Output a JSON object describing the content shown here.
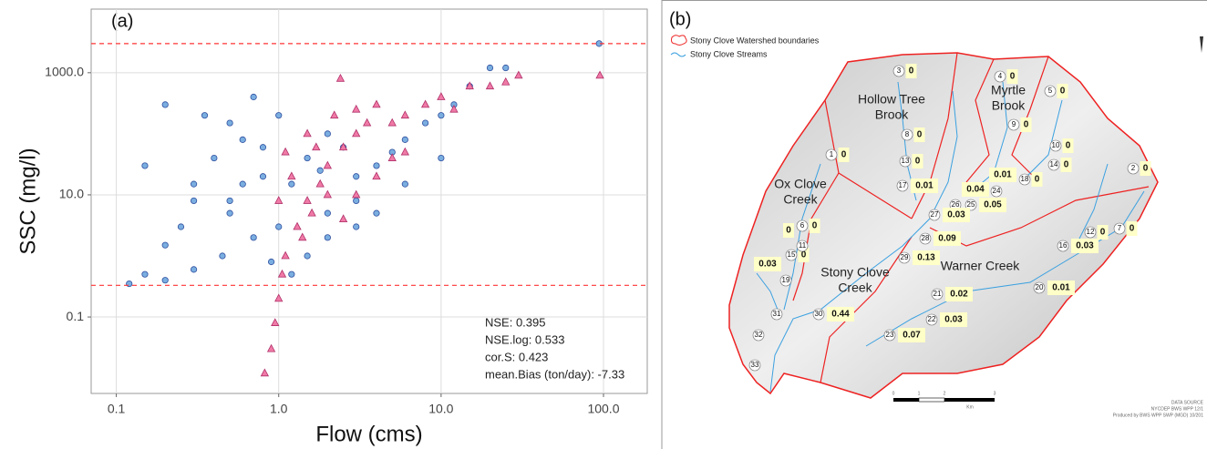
{
  "chart_data": {
    "type": "scatter",
    "panel_label": "(a)",
    "xlabel": "Flow (cms)",
    "ylabel": "SSC (mg/l)",
    "xscale": "log",
    "yscale": "log",
    "xlim": [
      0.07,
      186
    ],
    "ylim": [
      0.0056,
      11000
    ],
    "xticks": [
      0.1,
      {
        "value": 1,
        "label": "1.0"
      },
      {
        "value": 10,
        "label": "10.0"
      },
      {
        "value": 100,
        "label": "100.0"
      }
    ],
    "yticks": [
      0.1,
      {
        "value": 10,
        "label": "10.0"
      },
      {
        "value": 1000,
        "label": "1000.0"
      }
    ],
    "grid": true,
    "hlines": {
      "values": [
        3000,
        0.33
      ],
      "color": "#ff3333"
    },
    "series": [
      {
        "color": "#7aaee0",
        "marker": "circle",
        "x": [
          0.12,
          0.15,
          0.2,
          0.25,
          0.3,
          0.15,
          0.2,
          0.35,
          0.5,
          0.4,
          0.6,
          0.8,
          0.5,
          0.7,
          0.9,
          1.0,
          1.2,
          1.5,
          2,
          2.5,
          3,
          4,
          5,
          6,
          8,
          10,
          12,
          15,
          20,
          25,
          94,
          2,
          3,
          1.5,
          0.3,
          0.45,
          0.2,
          1.2,
          0.8,
          0.6,
          0.3,
          4,
          6,
          10,
          1,
          0.7,
          0.5,
          2,
          3,
          1.8
        ],
        "values": [
          0.35,
          0.5,
          1.5,
          3,
          8,
          30,
          300,
          200,
          150,
          40,
          80,
          60,
          5,
          2,
          0.8,
          3,
          15,
          40,
          100,
          60,
          20,
          30,
          50,
          80,
          150,
          200,
          300,
          600,
          1200,
          1200,
          3000,
          5,
          8,
          1,
          0.6,
          1,
          0.4,
          0.5,
          20,
          15,
          15,
          5,
          15,
          40,
          200,
          400,
          8,
          2,
          3,
          25
        ]
      },
      {
        "color": "#f07aa6",
        "marker": "triangle",
        "x": [
          0.82,
          0.9,
          0.95,
          1.0,
          1.05,
          1.1,
          1.3,
          1.5,
          1.8,
          2,
          2.5,
          3,
          1.5,
          2.2,
          2.4,
          3,
          4,
          5,
          6,
          8,
          10,
          15,
          20,
          30,
          95,
          1.2,
          1.6,
          2,
          3,
          4,
          5,
          1.1,
          1.4,
          2.5,
          6,
          12,
          25,
          1.7,
          3.5,
          1.0
        ],
        "values": [
          0.012,
          0.03,
          0.08,
          0.2,
          0.5,
          1,
          3,
          8,
          15,
          30,
          60,
          100,
          100,
          200,
          800,
          250,
          300,
          150,
          200,
          300,
          400,
          600,
          600,
          900,
          900,
          20,
          5,
          10,
          10,
          20,
          40,
          50,
          2,
          4,
          50,
          250,
          700,
          60,
          150,
          8
        ]
      }
    ],
    "annotations": [
      "NSE: 0.395",
      "NSE.log: 0.533",
      "cor.S: 0.423",
      "mean.Bias (ton/day): -7.33"
    ]
  },
  "map": {
    "panel_label": "(b)",
    "legend": [
      "Stony Clove Watershed boundaries",
      "Stony Clove Streams"
    ],
    "regions": [
      [
        "Hollow Tree",
        "Brook"
      ],
      [
        "Myrtle",
        "Brook"
      ],
      [
        "Ox Clove",
        "Creek"
      ],
      [
        "Stony Clove",
        "Creek"
      ],
      [
        "Warner Creek"
      ]
    ],
    "nodes": [
      {
        "id": "3",
        "value": "0"
      },
      {
        "id": "4",
        "value": "0"
      },
      {
        "id": "5",
        "value": "0"
      },
      {
        "id": "8",
        "value": "0"
      },
      {
        "id": "9",
        "value": "0"
      },
      {
        "id": "13",
        "value": "0"
      },
      {
        "id": "1",
        "value": "0"
      },
      {
        "id": "10",
        "value": "0"
      },
      {
        "id": "14",
        "value": "0"
      },
      {
        "id": "2",
        "value": "0"
      },
      {
        "id": "17",
        "value": "0.01"
      },
      {
        "id": "18",
        "value": "0"
      },
      {
        "id": "24"
      },
      {
        "id": "26"
      },
      {
        "id": "25",
        "value": "0.05"
      },
      {
        "id": "27",
        "value": "0.03"
      },
      {
        "id": "28",
        "value": "0.09"
      },
      {
        "id": "29",
        "value": "0.13"
      },
      {
        "id": "6",
        "value": "0"
      },
      {
        "id": "15",
        "value": "0"
      },
      {
        "id": "11"
      },
      {
        "id": "19"
      },
      {
        "id": "31"
      },
      {
        "id": "30",
        "value": "0.44"
      },
      {
        "id": "32"
      },
      {
        "id": "33"
      },
      {
        "id": "21",
        "value": "0.02"
      },
      {
        "id": "22",
        "value": "0.03"
      },
      {
        "id": "23",
        "value": "0.07"
      },
      {
        "id": "20",
        "value": "0.01"
      },
      {
        "id": "16",
        "value": "0.03"
      },
      {
        "id": "12",
        "value": "0"
      },
      {
        "id": "7",
        "value": "0"
      }
    ],
    "boxes": [
      "0.01",
      "0.04",
      "0",
      "0.03"
    ],
    "scale": {
      "ticks": [
        "0",
        "1",
        "2",
        "3"
      ],
      "unit": "Km"
    },
    "credits": [
      "DATA SOURCE",
      "NYCDEP BWS WPP 12/1",
      "Produced by BWS WPP SWP (MGD) 10/201"
    ]
  }
}
